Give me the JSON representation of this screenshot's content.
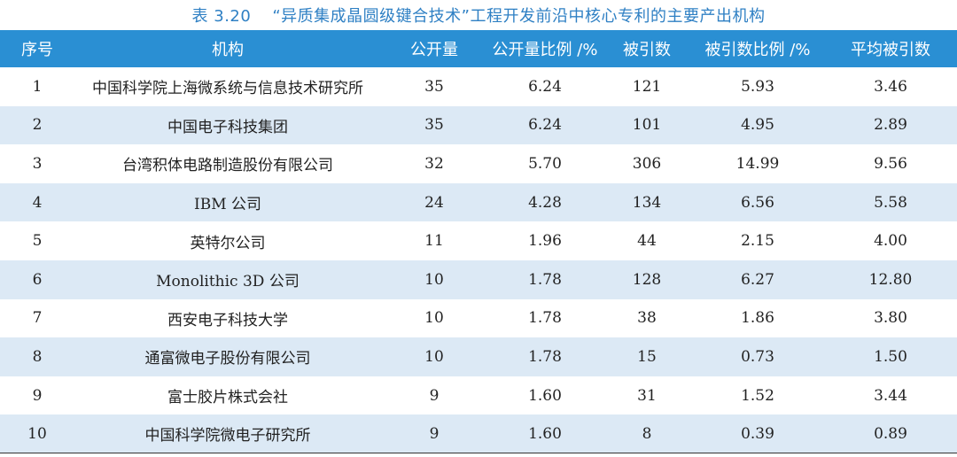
{
  "caption": {
    "number": "表 3.20",
    "title": "“异质集成晶圆级键合技术”工程开发前沿中核心专利的主要产出机构"
  },
  "columns": [
    "序号",
    "机构",
    "公开量",
    "公开量比例 /%",
    "被引数",
    "被引数比例 /%",
    "平均被引数"
  ],
  "rows": [
    [
      "1",
      "中国科学院上海微系统与信息技术研究所",
      "35",
      "6.24",
      "121",
      "5.93",
      "3.46"
    ],
    [
      "2",
      "中国电子科技集团",
      "35",
      "6.24",
      "101",
      "4.95",
      "2.89"
    ],
    [
      "3",
      "台湾积体电路制造股份有限公司",
      "32",
      "5.70",
      "306",
      "14.99",
      "9.56"
    ],
    [
      "4",
      "IBM 公司",
      "24",
      "4.28",
      "134",
      "6.56",
      "5.58"
    ],
    [
      "5",
      "英特尔公司",
      "11",
      "1.96",
      "44",
      "2.15",
      "4.00"
    ],
    [
      "6",
      "Monolithic 3D 公司",
      "10",
      "1.78",
      "128",
      "6.27",
      "12.80"
    ],
    [
      "7",
      "西安电子科技大学",
      "10",
      "1.78",
      "38",
      "1.86",
      "3.80"
    ],
    [
      "8",
      "通富微电子股份有限公司",
      "10",
      "1.78",
      "15",
      "0.73",
      "1.50"
    ],
    [
      "9",
      "富士胶片株式会社",
      "9",
      "1.60",
      "31",
      "1.52",
      "3.44"
    ],
    [
      "10",
      "中国科学院微电子研究所",
      "9",
      "1.60",
      "8",
      "0.39",
      "0.89"
    ]
  ]
}
